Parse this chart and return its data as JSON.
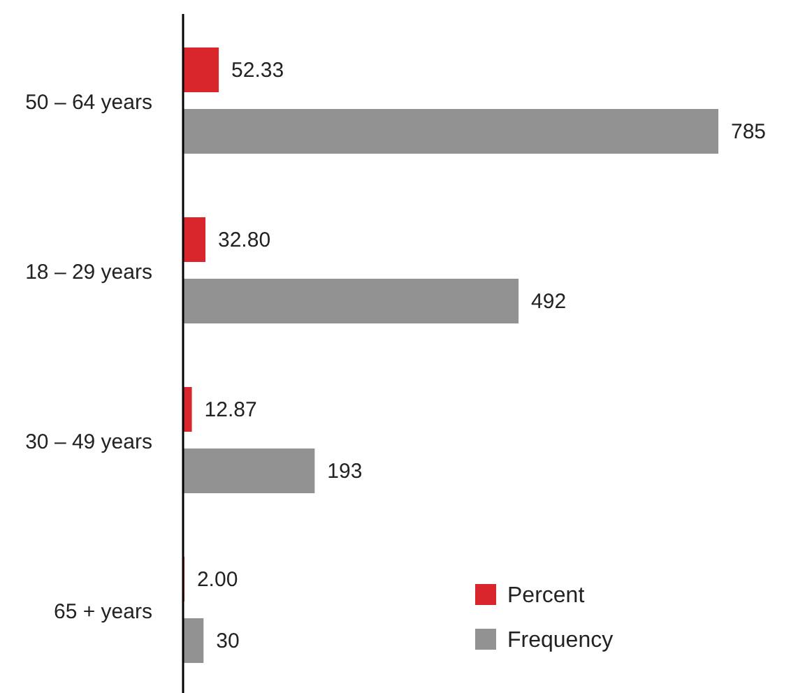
{
  "chart_data": {
    "type": "bar",
    "orientation": "horizontal",
    "categories": [
      "50 – 64 years",
      "18 – 29 years",
      "30 – 49 years",
      "65 + years"
    ],
    "series": [
      {
        "name": "Percent",
        "color": "#d9262c",
        "values": [
          52.33,
          32.8,
          12.87,
          2
        ],
        "value_labels": [
          "52.33",
          "32.80",
          "12.87",
          "2.00"
        ]
      },
      {
        "name": "Frequency",
        "color": "#939292",
        "values": [
          785,
          492,
          193,
          30
        ],
        "value_labels": [
          "785",
          "492",
          "193",
          "30"
        ]
      }
    ],
    "legend": "bottom right"
  }
}
